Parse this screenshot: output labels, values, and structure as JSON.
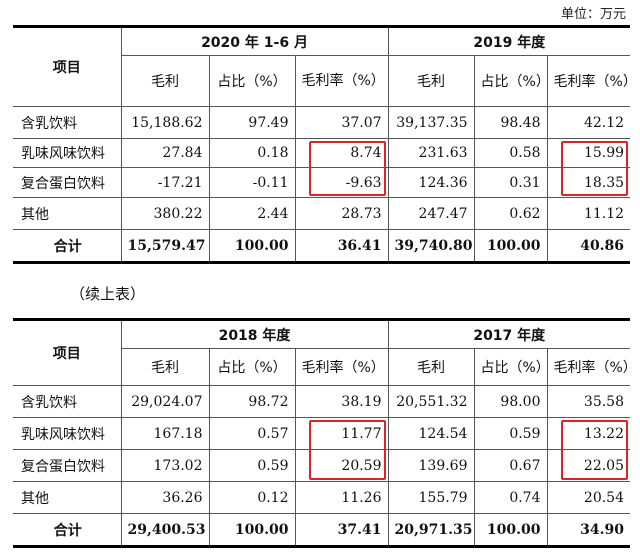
{
  "unit_note": "单位：万元",
  "continue_note": "（续上表）",
  "tables": [
    {
      "item_header": "项目",
      "periods": [
        "2020 年 1-6 月",
        "2019 年度"
      ],
      "col_labels": [
        "毛利",
        "占比（%）",
        "毛利率（%）"
      ],
      "rows": [
        {
          "label": "含乳饮料",
          "values": [
            "15,188.62",
            "97.49",
            "37.07",
            "39,137.35",
            "98.48",
            "42.12"
          ]
        },
        {
          "label": "乳味风味饮料",
          "values": [
            "27.84",
            "0.18",
            "8.74",
            "231.63",
            "0.58",
            "15.99"
          ]
        },
        {
          "label": "复合蛋白饮料",
          "values": [
            "-17.21",
            "-0.11",
            "-9.63",
            "124.36",
            "0.31",
            "18.35"
          ]
        },
        {
          "label": "其他",
          "values": [
            "380.22",
            "2.44",
            "28.73",
            "247.47",
            "0.62",
            "11.12"
          ]
        },
        {
          "label": "合计",
          "values": [
            "15,579.47",
            "100.00",
            "36.41",
            "39,740.80",
            "100.00",
            "40.86"
          ]
        }
      ]
    },
    {
      "item_header": "项目",
      "periods": [
        "2018 年度",
        "2017 年度"
      ],
      "col_labels": [
        "毛利",
        "占比（%）",
        "毛利率（%）"
      ],
      "rows": [
        {
          "label": "含乳饮料",
          "values": [
            "29,024.07",
            "98.72",
            "38.19",
            "20,551.32",
            "98.00",
            "35.58"
          ]
        },
        {
          "label": "乳味风味饮料",
          "values": [
            "167.18",
            "0.57",
            "11.77",
            "124.54",
            "0.59",
            "13.22"
          ]
        },
        {
          "label": "复合蛋白饮料",
          "values": [
            "173.02",
            "0.59",
            "20.59",
            "139.69",
            "0.67",
            "22.05"
          ]
        },
        {
          "label": "其他",
          "values": [
            "36.26",
            "0.12",
            "11.26",
            "155.79",
            "0.74",
            "20.54"
          ]
        },
        {
          "label": "合计",
          "values": [
            "29,400.53",
            "100.00",
            "37.41",
            "20,971.35",
            "100.00",
            "34.90"
          ]
        }
      ]
    }
  ],
  "highlight_color": "#d7262b"
}
